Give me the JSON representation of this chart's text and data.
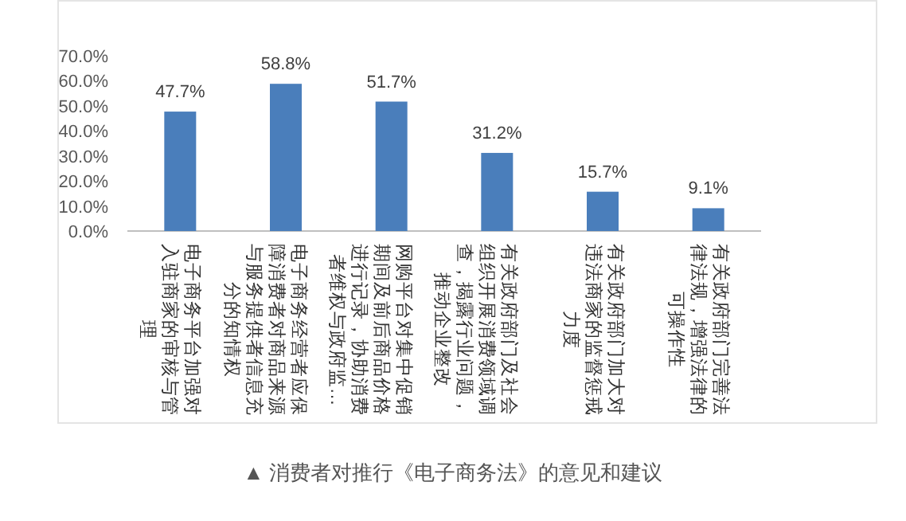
{
  "chart_data": {
    "type": "bar",
    "color": "#4a7ebb",
    "categories": [
      "电子商务平台加强对入驻商家的审核与管理",
      "电子商务经营者应保障消费者对商品来源与服务提供者信息充分的知情权",
      "网购平台对集中促销期间及前后商品价格进行记录，协助消费者维权与政府监…",
      "有关政府部门及社会组织开展消费领域调查，揭露行业问题，推动企业整改",
      "有关政府部门加大对违法商家的监督惩戒力度",
      "有关政府部门完善法律法规，增强法律的可操作性"
    ],
    "values": [
      47.7,
      58.8,
      51.7,
      31.2,
      15.7,
      9.1
    ],
    "value_labels": [
      "47.7%",
      "58.8%",
      "51.7%",
      "31.2%",
      "15.7%",
      "9.1%"
    ],
    "ylim": [
      0,
      70
    ],
    "yticks": [
      {
        "value": 0,
        "label": "0.0%"
      },
      {
        "value": 10,
        "label": "10.0%"
      },
      {
        "value": 20,
        "label": "20.0%"
      },
      {
        "value": 30,
        "label": "30.0%"
      },
      {
        "value": 40,
        "label": "40.0%"
      },
      {
        "value": 50,
        "label": "50.0%"
      },
      {
        "value": 60,
        "label": "60.0%"
      },
      {
        "value": 70,
        "label": "70.0%"
      }
    ],
    "grid": false,
    "legend": false,
    "annotations": [
      "▲ 消费者对推行《电子商务法》的意见和建议"
    ]
  }
}
